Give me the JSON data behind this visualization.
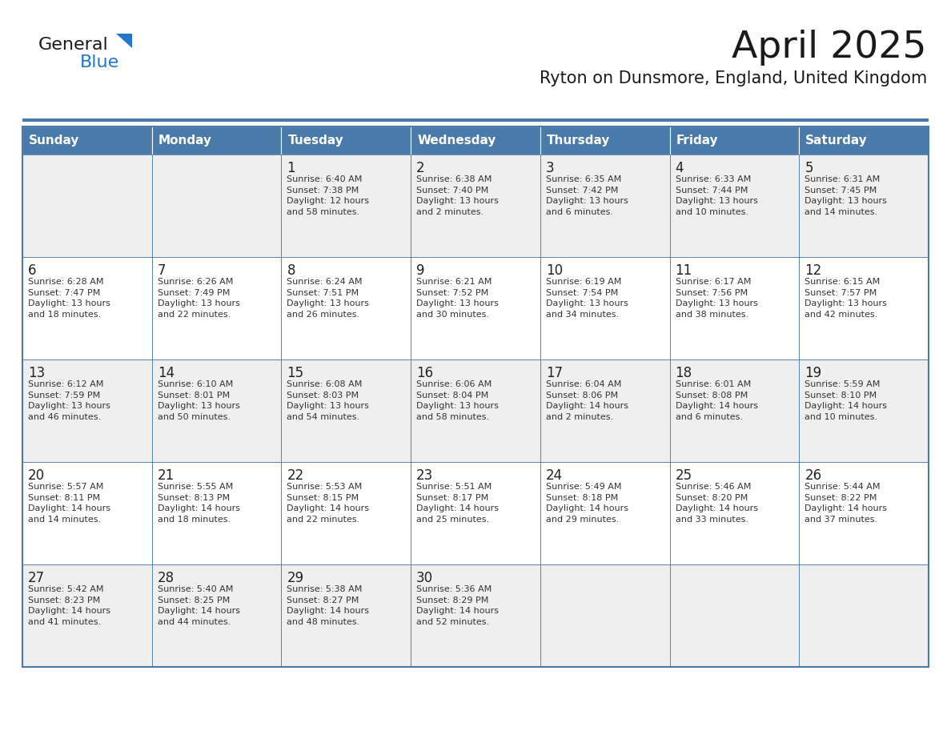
{
  "title": "April 2025",
  "subtitle": "Ryton on Dunsmore, England, United Kingdom",
  "days_of_week": [
    "Sunday",
    "Monday",
    "Tuesday",
    "Wednesday",
    "Thursday",
    "Friday",
    "Saturday"
  ],
  "header_bg": "#4a7aaa",
  "header_text": "#ffffff",
  "row_bg_odd": "#efefef",
  "row_bg_even": "#ffffff",
  "cell_border": "#4a7aaa",
  "day_num_color": "#222222",
  "info_text_color": "#333333",
  "title_color": "#1a1a1a",
  "subtitle_color": "#1a1a1a",
  "logo_general_color": "#1a1a1a",
  "logo_blue_color": "#2277cc",
  "logo_triangle_color": "#2277cc",
  "calendar_data": [
    [
      {
        "day": null,
        "info": ""
      },
      {
        "day": null,
        "info": ""
      },
      {
        "day": 1,
        "info": "Sunrise: 6:40 AM\nSunset: 7:38 PM\nDaylight: 12 hours\nand 58 minutes."
      },
      {
        "day": 2,
        "info": "Sunrise: 6:38 AM\nSunset: 7:40 PM\nDaylight: 13 hours\nand 2 minutes."
      },
      {
        "day": 3,
        "info": "Sunrise: 6:35 AM\nSunset: 7:42 PM\nDaylight: 13 hours\nand 6 minutes."
      },
      {
        "day": 4,
        "info": "Sunrise: 6:33 AM\nSunset: 7:44 PM\nDaylight: 13 hours\nand 10 minutes."
      },
      {
        "day": 5,
        "info": "Sunrise: 6:31 AM\nSunset: 7:45 PM\nDaylight: 13 hours\nand 14 minutes."
      }
    ],
    [
      {
        "day": 6,
        "info": "Sunrise: 6:28 AM\nSunset: 7:47 PM\nDaylight: 13 hours\nand 18 minutes."
      },
      {
        "day": 7,
        "info": "Sunrise: 6:26 AM\nSunset: 7:49 PM\nDaylight: 13 hours\nand 22 minutes."
      },
      {
        "day": 8,
        "info": "Sunrise: 6:24 AM\nSunset: 7:51 PM\nDaylight: 13 hours\nand 26 minutes."
      },
      {
        "day": 9,
        "info": "Sunrise: 6:21 AM\nSunset: 7:52 PM\nDaylight: 13 hours\nand 30 minutes."
      },
      {
        "day": 10,
        "info": "Sunrise: 6:19 AM\nSunset: 7:54 PM\nDaylight: 13 hours\nand 34 minutes."
      },
      {
        "day": 11,
        "info": "Sunrise: 6:17 AM\nSunset: 7:56 PM\nDaylight: 13 hours\nand 38 minutes."
      },
      {
        "day": 12,
        "info": "Sunrise: 6:15 AM\nSunset: 7:57 PM\nDaylight: 13 hours\nand 42 minutes."
      }
    ],
    [
      {
        "day": 13,
        "info": "Sunrise: 6:12 AM\nSunset: 7:59 PM\nDaylight: 13 hours\nand 46 minutes."
      },
      {
        "day": 14,
        "info": "Sunrise: 6:10 AM\nSunset: 8:01 PM\nDaylight: 13 hours\nand 50 minutes."
      },
      {
        "day": 15,
        "info": "Sunrise: 6:08 AM\nSunset: 8:03 PM\nDaylight: 13 hours\nand 54 minutes."
      },
      {
        "day": 16,
        "info": "Sunrise: 6:06 AM\nSunset: 8:04 PM\nDaylight: 13 hours\nand 58 minutes."
      },
      {
        "day": 17,
        "info": "Sunrise: 6:04 AM\nSunset: 8:06 PM\nDaylight: 14 hours\nand 2 minutes."
      },
      {
        "day": 18,
        "info": "Sunrise: 6:01 AM\nSunset: 8:08 PM\nDaylight: 14 hours\nand 6 minutes."
      },
      {
        "day": 19,
        "info": "Sunrise: 5:59 AM\nSunset: 8:10 PM\nDaylight: 14 hours\nand 10 minutes."
      }
    ],
    [
      {
        "day": 20,
        "info": "Sunrise: 5:57 AM\nSunset: 8:11 PM\nDaylight: 14 hours\nand 14 minutes."
      },
      {
        "day": 21,
        "info": "Sunrise: 5:55 AM\nSunset: 8:13 PM\nDaylight: 14 hours\nand 18 minutes."
      },
      {
        "day": 22,
        "info": "Sunrise: 5:53 AM\nSunset: 8:15 PM\nDaylight: 14 hours\nand 22 minutes."
      },
      {
        "day": 23,
        "info": "Sunrise: 5:51 AM\nSunset: 8:17 PM\nDaylight: 14 hours\nand 25 minutes."
      },
      {
        "day": 24,
        "info": "Sunrise: 5:49 AM\nSunset: 8:18 PM\nDaylight: 14 hours\nand 29 minutes."
      },
      {
        "day": 25,
        "info": "Sunrise: 5:46 AM\nSunset: 8:20 PM\nDaylight: 14 hours\nand 33 minutes."
      },
      {
        "day": 26,
        "info": "Sunrise: 5:44 AM\nSunset: 8:22 PM\nDaylight: 14 hours\nand 37 minutes."
      }
    ],
    [
      {
        "day": 27,
        "info": "Sunrise: 5:42 AM\nSunset: 8:23 PM\nDaylight: 14 hours\nand 41 minutes."
      },
      {
        "day": 28,
        "info": "Sunrise: 5:40 AM\nSunset: 8:25 PM\nDaylight: 14 hours\nand 44 minutes."
      },
      {
        "day": 29,
        "info": "Sunrise: 5:38 AM\nSunset: 8:27 PM\nDaylight: 14 hours\nand 48 minutes."
      },
      {
        "day": 30,
        "info": "Sunrise: 5:36 AM\nSunset: 8:29 PM\nDaylight: 14 hours\nand 52 minutes."
      },
      {
        "day": null,
        "info": ""
      },
      {
        "day": null,
        "info": ""
      },
      {
        "day": null,
        "info": ""
      }
    ]
  ]
}
